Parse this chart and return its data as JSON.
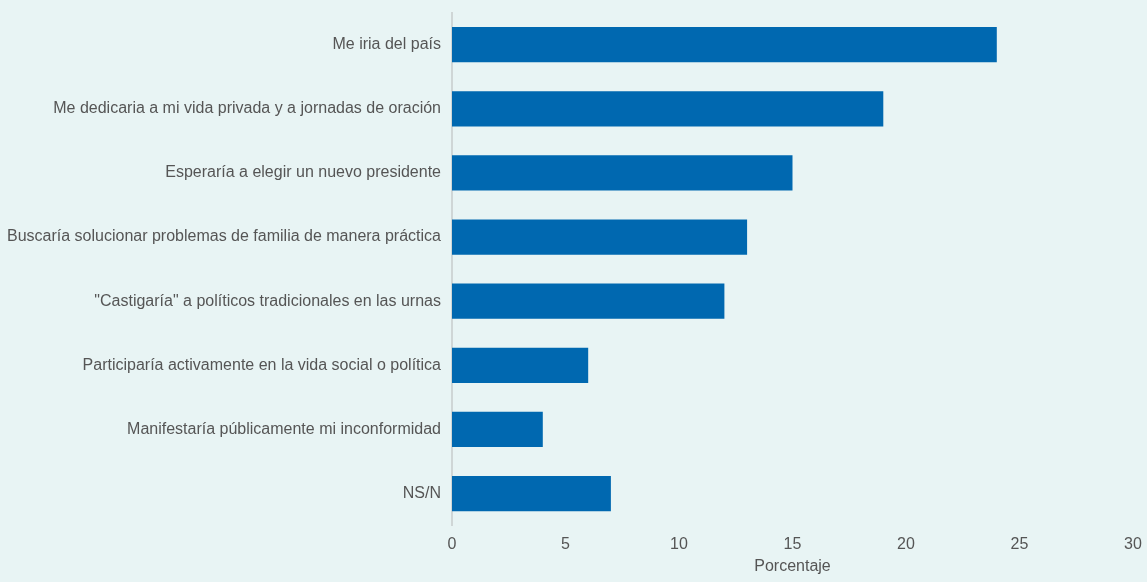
{
  "chart_data": {
    "type": "bar",
    "orientation": "horizontal",
    "xlabel": "Porcentaje",
    "categories": [
      "Me iria del país",
      "Me dedicaria a mi vida privada y a jornadas de oración",
      "Esperaría a elegir un nuevo presidente",
      "Buscaría solucionar problemas de familia de manera práctica",
      "\"Castigaría\" a políticos tradicionales en las urnas",
      "Participaría activamente en la vida social o política",
      "Manifestaría públicamente mi inconformidad",
      "NS/N"
    ],
    "values": [
      24,
      19,
      15,
      13,
      12,
      6,
      4,
      7
    ],
    "color": "#0068b0",
    "xlim": [
      0,
      30
    ],
    "xticks": [
      0,
      5,
      10,
      15,
      20,
      25,
      30
    ],
    "grid": false,
    "legend": false
  }
}
